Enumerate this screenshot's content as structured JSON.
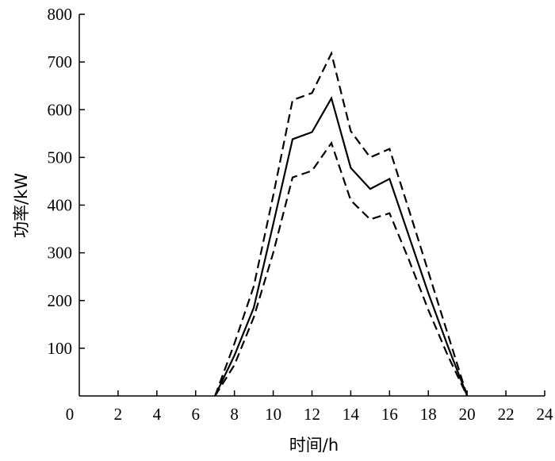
{
  "chart_data": {
    "type": "line",
    "title": "",
    "xlabel": "时间/h",
    "ylabel": "功率/kW",
    "xlim": [
      0,
      24
    ],
    "ylim": [
      0,
      800
    ],
    "x_ticks": [
      "0",
      "2",
      "4",
      "6",
      "8",
      "10",
      "12",
      "14",
      "16",
      "18",
      "20",
      "22",
      "24"
    ],
    "y_ticks": [
      "100",
      "200",
      "300",
      "400",
      "500",
      "600",
      "700",
      "800"
    ],
    "grid": false,
    "legend": "none",
    "colors": {
      "axis": "#000000",
      "line": "#000000"
    },
    "series": [
      {
        "style": "dashed",
        "x": [
          7,
          8,
          9,
          10,
          11,
          12,
          13,
          14,
          15,
          16,
          17,
          18,
          19,
          20
        ],
        "y": [
          0,
          110,
          230,
          420,
          620,
          635,
          718,
          555,
          500,
          518,
          390,
          260,
          130,
          0
        ]
      },
      {
        "style": "solid",
        "x": [
          7,
          8,
          9,
          10,
          11,
          12,
          13,
          14,
          15,
          16,
          17,
          18,
          19,
          20
        ],
        "y": [
          0,
          85,
          185,
          360,
          538,
          553,
          624,
          478,
          434,
          455,
          335,
          215,
          105,
          0
        ]
      },
      {
        "style": "dashed",
        "x": [
          7,
          8,
          9,
          10,
          11,
          12,
          13,
          14,
          15,
          16,
          17,
          18,
          19,
          20
        ],
        "y": [
          0,
          65,
          165,
          300,
          458,
          472,
          530,
          410,
          370,
          383,
          285,
          180,
          85,
          0
        ]
      }
    ]
  }
}
